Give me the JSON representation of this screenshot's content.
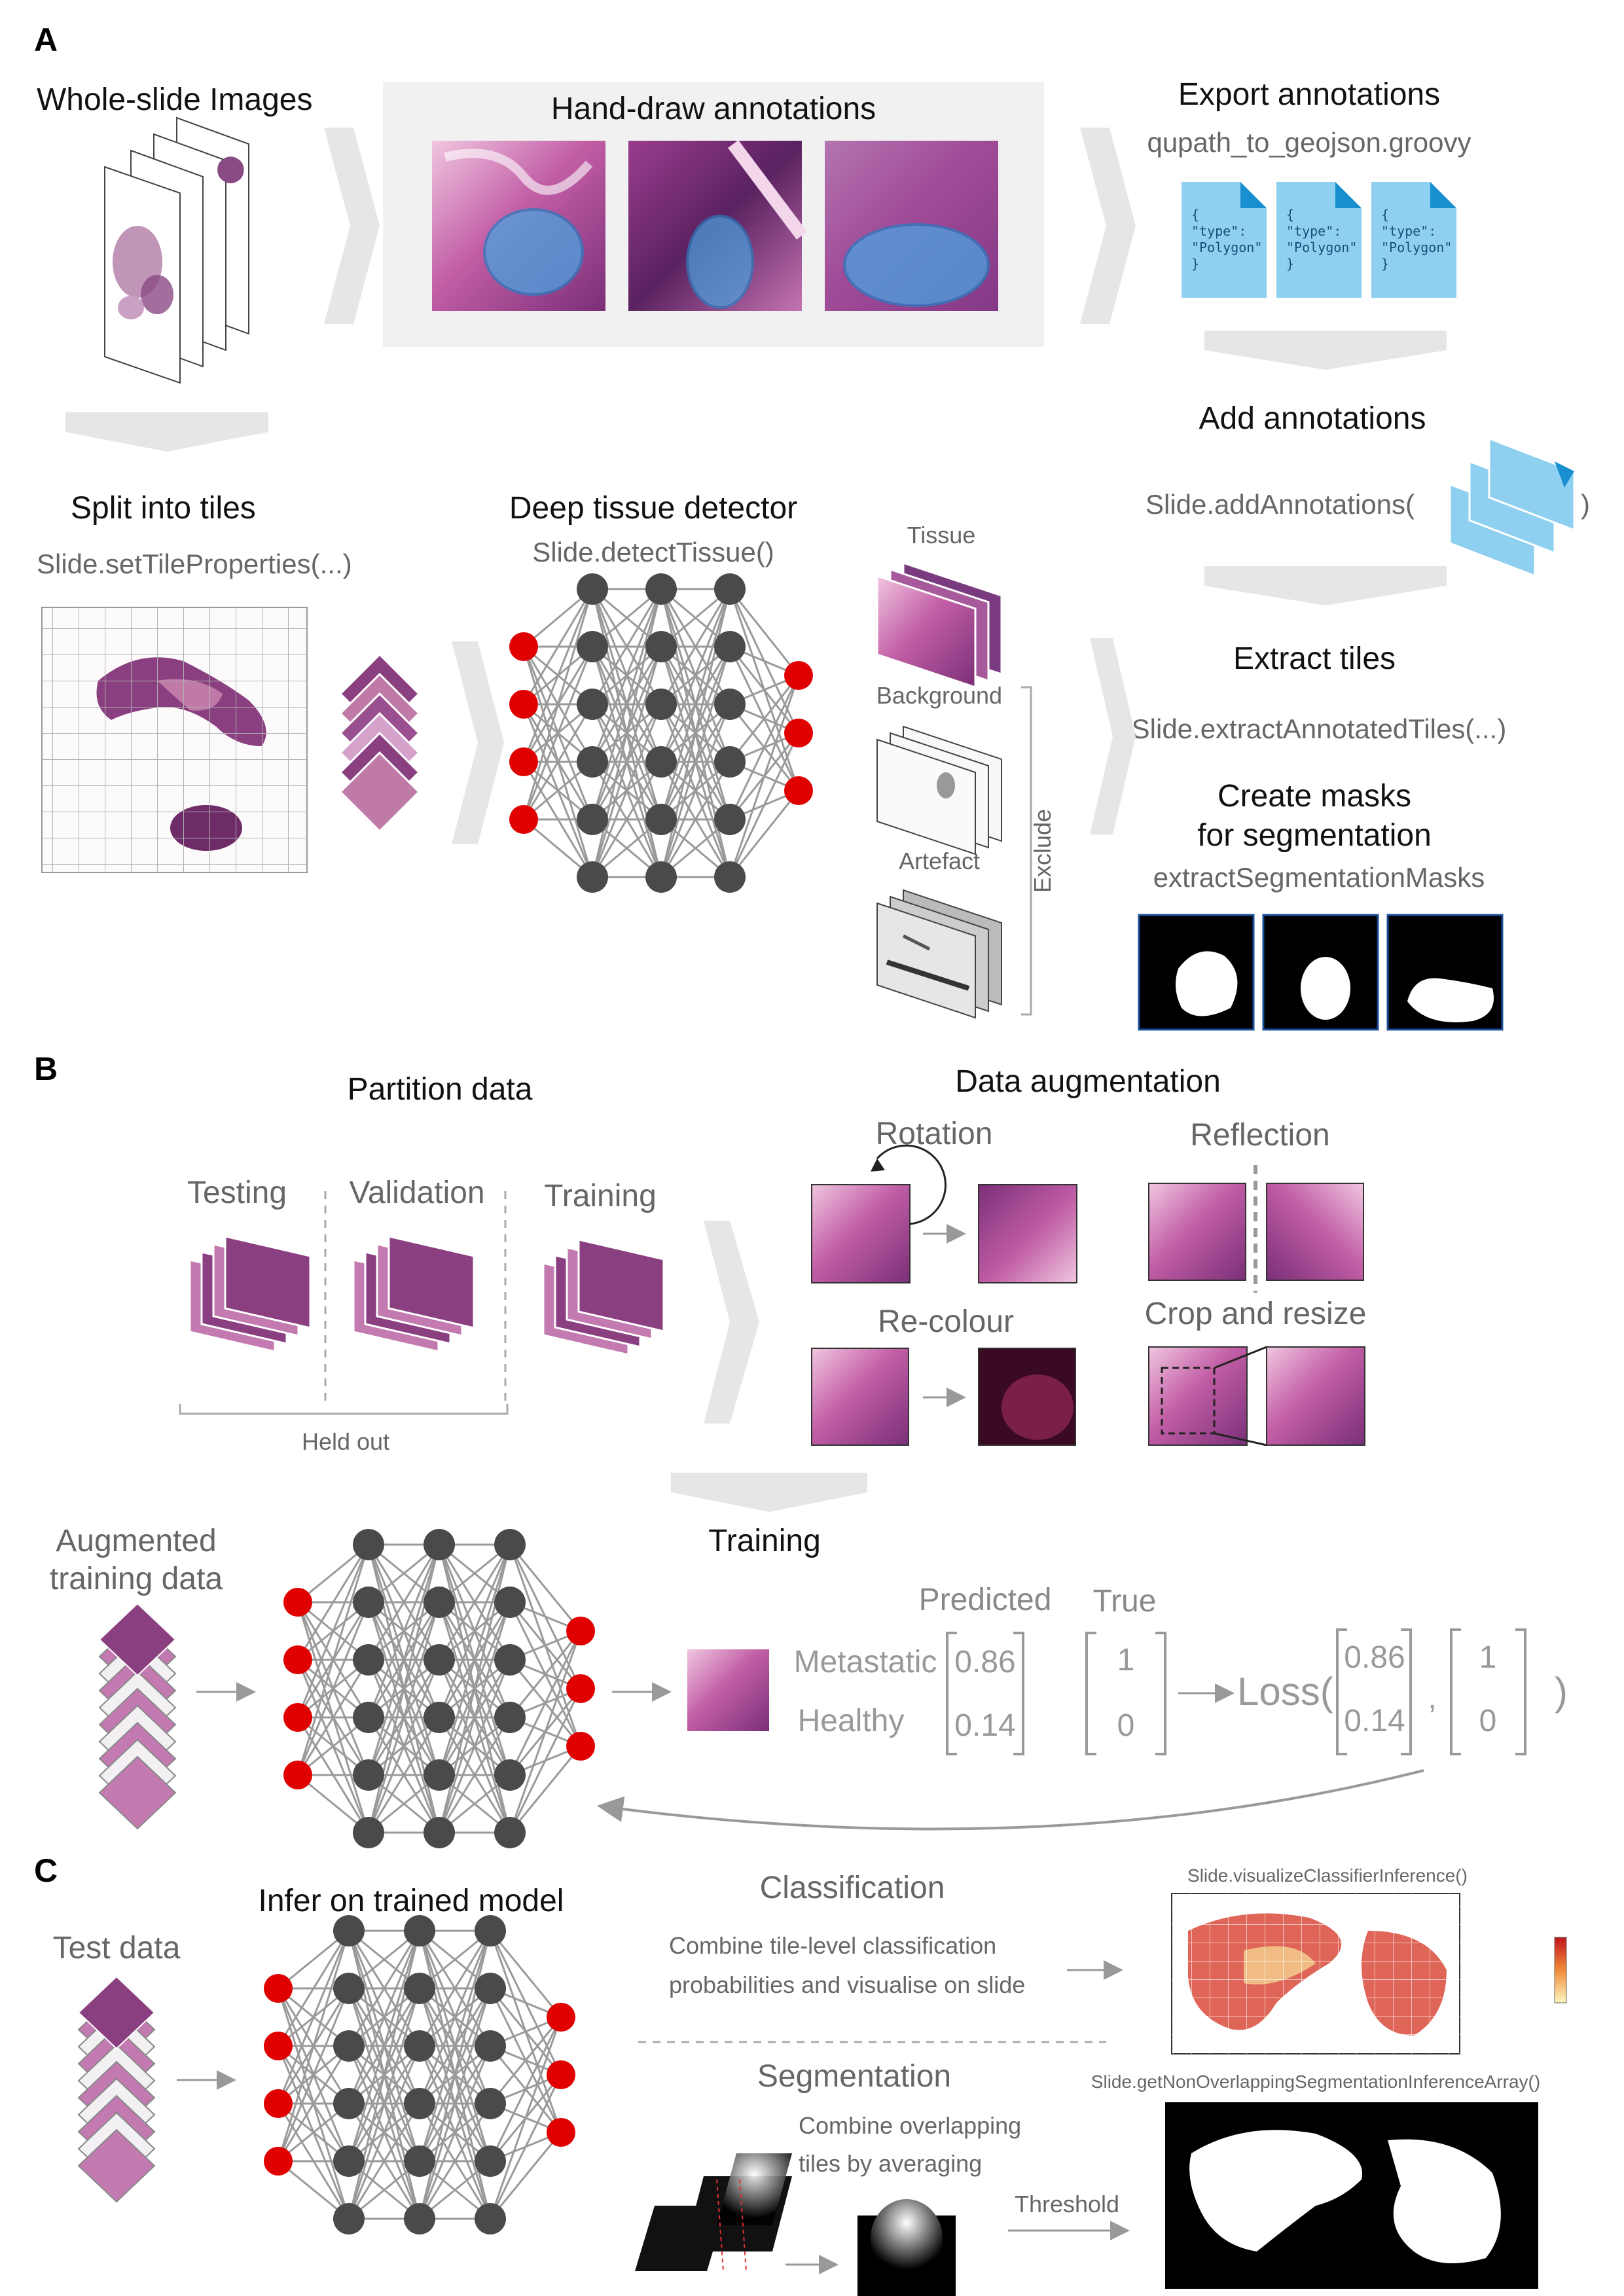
{
  "panels": {
    "a": "A",
    "b": "B",
    "c": "C"
  },
  "sectionA": {
    "whole_slide": "Whole-slide Images",
    "hand_draw": "Hand-draw annotations",
    "export": "Export annotations",
    "export_code": "qupath_to_geojson.groovy",
    "geojson_lines": [
      "{",
      "\"type\":",
      "\"Polygon\"",
      "}"
    ],
    "add": "Add annotations",
    "add_code_open": "Slide.addAnnotations(",
    "add_code_close": ")",
    "split": "Split into tiles",
    "split_code": "Slide.setTileProperties(...)",
    "detector": "Deep tissue detector",
    "detector_code": "Slide.detectTissue()",
    "tissue": "Tissue",
    "background": "Background",
    "artefact": "Artefact",
    "exclude": "Exclude",
    "extract": "Extract tiles",
    "extract_code": "Slide.extractAnnotatedTiles(...)",
    "masks_l1": "Create masks",
    "masks_l2": "for segmentation",
    "masks_code": "extractSegmentationMasks"
  },
  "sectionB": {
    "partition": "Partition data",
    "testing": "Testing",
    "validation": "Validation",
    "training_set": "Training",
    "held_out": "Held out",
    "augmentation": "Data augmentation",
    "rotation": "Rotation",
    "reflection": "Reflection",
    "recolour": "Re-colour",
    "crop": "Crop and resize",
    "aug_l1": "Augmented",
    "aug_l2": "training data",
    "training": "Training",
    "predicted": "Predicted",
    "true": "True",
    "metastatic": "Metastatic",
    "healthy": "Healthy",
    "pred_values": [
      "0.86",
      "0.14"
    ],
    "true_values": [
      "1",
      "0"
    ],
    "loss": "Loss(",
    "comma": ",",
    "close": ")"
  },
  "sectionC": {
    "test_data": "Test data",
    "infer": "Infer on trained model",
    "classification": "Classification",
    "class_l1": "Combine tile-level classification",
    "class_l2": "probabilities and visualise on slide",
    "class_code": "Slide.visualizeClassifierInference()",
    "segmentation": "Segmentation",
    "seg_l1": "Combine overlapping",
    "seg_l2": "tiles by averaging",
    "threshold": "Threshold",
    "seg_code": "Slide.getNonOverlappingSegmentationInferenceArray()"
  },
  "colors": {
    "node_input": "#e00000",
    "node_hidden": "#4a4a4a",
    "tissue_pink": "#d98ac0",
    "tissue_purple": "#8a3f8a",
    "annotation_blue": "#4aa3e0",
    "file_blue": "#8fd0f0",
    "chevron": "#e6e6e6"
  },
  "icons": [
    "chevron-right-icon",
    "chevron-down-icon",
    "arrow-right-icon",
    "rotate-arrow-icon",
    "document-icon"
  ]
}
